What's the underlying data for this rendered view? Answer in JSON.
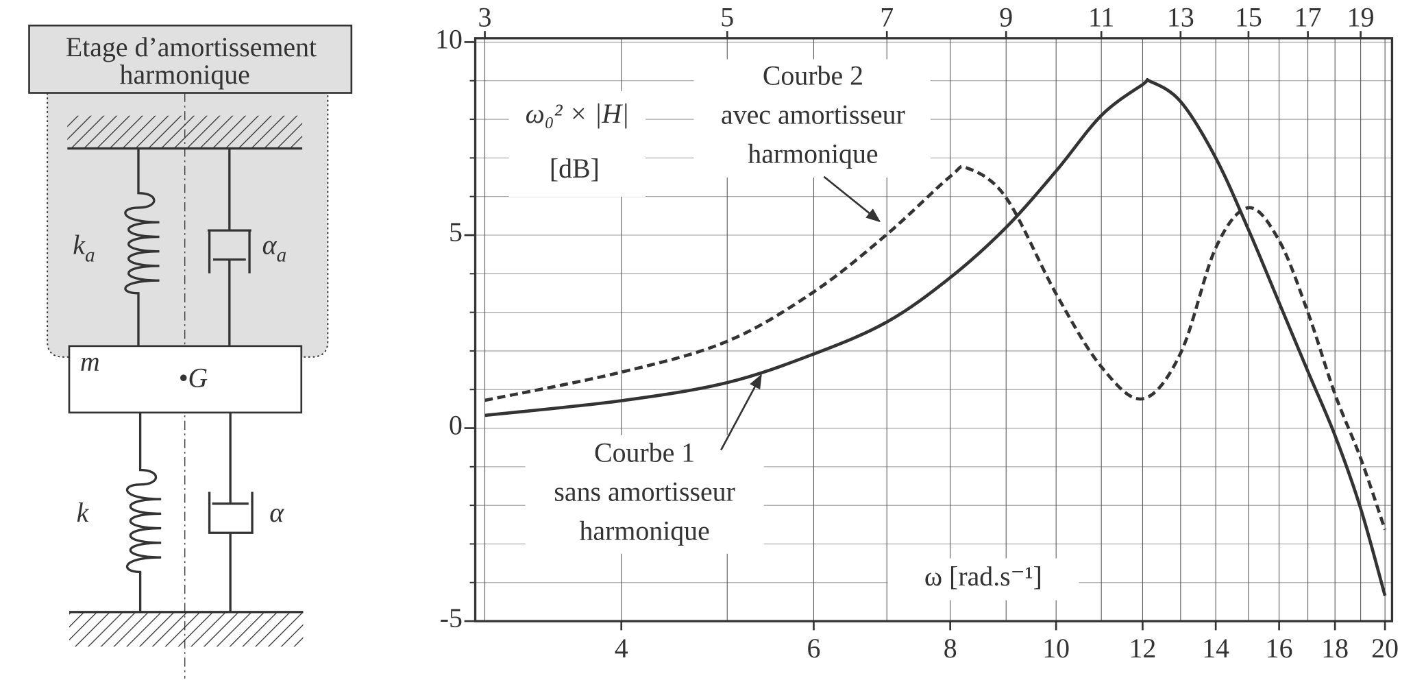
{
  "diagram": {
    "title_lines": [
      "Etage d’amortissement",
      "harmonique"
    ],
    "labels": {
      "ka": "k",
      "ka_sub": "a",
      "alpha_a": "α",
      "alpha_a_sub": "a",
      "m": "m",
      "G": "•G",
      "k": "k",
      "alpha": "α"
    }
  },
  "chart_data": {
    "type": "line",
    "xscale": "log",
    "grid": true,
    "ylabel": "ω₀² × |H|",
    "ylabel_unit": "[dB]",
    "xlabel": "ω [rad.s⁻¹]",
    "xlim": [
      2.94,
      20.3
    ],
    "ylim": [
      -5,
      10.1
    ],
    "xticks": [
      4,
      6,
      8,
      10,
      12,
      14,
      16,
      18,
      20
    ],
    "x2ticks": [
      3,
      5,
      7,
      9,
      11,
      13,
      15,
      17,
      19
    ],
    "yticks": [
      -5,
      0,
      5,
      10
    ],
    "yminorticks": [
      -4,
      -3,
      -2,
      -1,
      1,
      2,
      3,
      4,
      6,
      7,
      8,
      9
    ],
    "series": [
      {
        "name": "Courbe 1",
        "color": "#333333",
        "dash": false,
        "x": [
          3,
          4,
          5,
          6,
          7,
          8,
          9,
          10,
          11,
          12,
          12.2,
          13,
          14,
          15,
          16,
          17,
          18,
          19,
          20
        ],
        "values": [
          0.33,
          0.71,
          1.18,
          1.92,
          2.75,
          3.9,
          5.2,
          6.66,
          8.1,
          8.9,
          8.98,
          8.46,
          7.0,
          5.14,
          3.25,
          1.47,
          -0.19,
          -2.08,
          -4.34
        ]
      },
      {
        "name": "Courbe 2",
        "color": "#333333",
        "dash": true,
        "x": [
          3,
          4,
          5,
          6,
          7,
          8,
          8.3,
          9,
          10,
          11,
          12,
          13,
          14,
          15,
          16,
          17,
          18,
          19,
          20
        ],
        "values": [
          0.72,
          1.45,
          2.25,
          3.53,
          5.02,
          6.52,
          6.73,
          5.97,
          3.48,
          1.59,
          0.76,
          1.94,
          4.67,
          5.71,
          4.86,
          3.0,
          0.88,
          -0.78,
          -2.63
        ]
      }
    ],
    "annotations": [
      {
        "lines": [
          "Courbe 2",
          "avec amortisseur",
          "harmonique"
        ]
      },
      {
        "lines": [
          "Courbe 1",
          "sans amortisseur",
          "harmonique"
        ]
      }
    ]
  }
}
